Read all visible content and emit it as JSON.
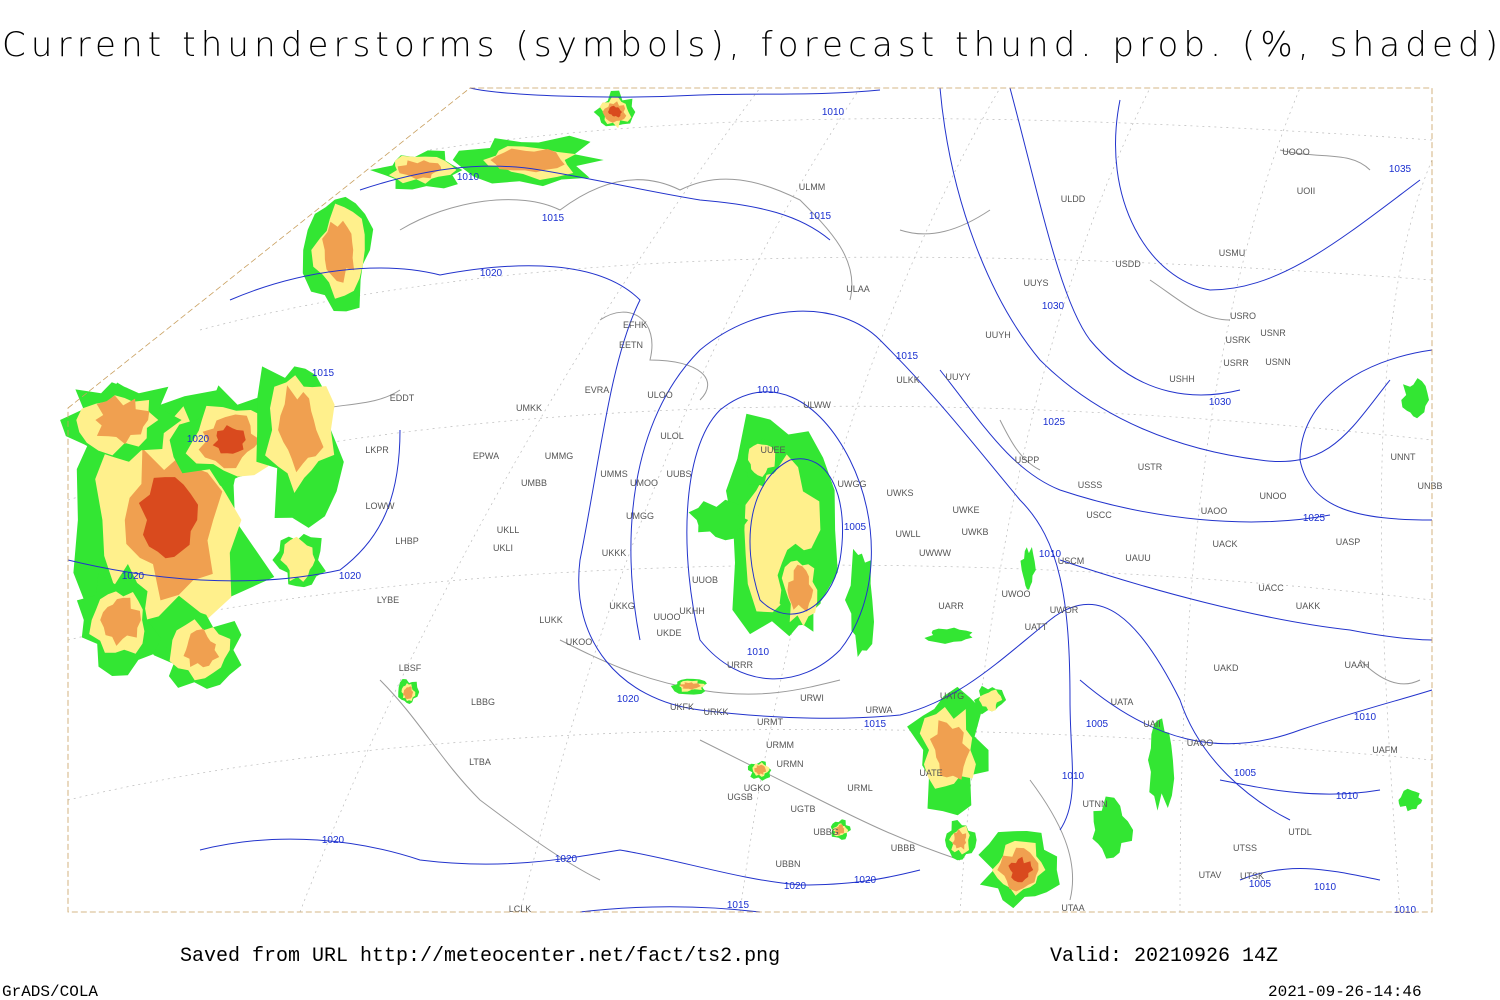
{
  "header": {
    "title": "Current thunderstorms (symbols), forecast thund. prob. (%, shaded)"
  },
  "footer": {
    "source": "Saved from URL http://meteocenter.net/fact/ts2.png",
    "valid": "Valid: 20210926 14Z",
    "software": "GrADS/COLA",
    "timestamp": "2021-09-26-14:46"
  },
  "map": {
    "isobar_labels": [
      1010,
      1010,
      1015,
      1015,
      1020,
      1015,
      1020,
      1020,
      1020,
      1015,
      1010,
      1005,
      1010,
      1010,
      1020,
      1015,
      1030,
      1030,
      1025,
      1025,
      1035,
      1005,
      1010,
      1005,
      1010,
      1010,
      1010,
      1005,
      1010,
      1020,
      1020,
      1020,
      1020,
      1015
    ],
    "stations": [
      "ULMM",
      "ULAA",
      "UUYS",
      "ULDD",
      "USDD",
      "USMU",
      "UOOO",
      "UOII",
      "UUYH",
      "USRO",
      "USRK",
      "USNR",
      "USRR",
      "USNN",
      "USHH",
      "ULKK",
      "UUYY",
      "EFHK",
      "EETN",
      "EVRA",
      "ULOO",
      "ULWW",
      "UMKK",
      "EDDT",
      "EPWA",
      "UMMG",
      "ULOL",
      "UUEE",
      "UMMS",
      "UMOO",
      "UUBS",
      "UWGG",
      "UWKS",
      "LKPR",
      "UMBB",
      "USPP",
      "USTR",
      "USSS",
      "UNOO",
      "LOWW",
      "UKLL",
      "UWKE",
      "UMGG",
      "UKLI",
      "LHBP",
      "UWKB",
      "USCC",
      "UNBB",
      "UNNT",
      "UAOO",
      "UACK",
      "UASP",
      "UWWW",
      "UWLL",
      "UKKK",
      "USCM",
      "UAUU",
      "UUOB",
      "UACC",
      "LYBE",
      "UKHH",
      "UKKG",
      "UUOO",
      "UWOO",
      "UWOR",
      "UKDE",
      "UARR",
      "UAKK",
      "LUKK",
      "UKOO",
      "UATT",
      "UAKD",
      "LBSF",
      "URRR",
      "UAAH",
      "LBBG",
      "URWI",
      "URWA",
      "UATG",
      "UKFK",
      "URKK",
      "UATA",
      "URMT",
      "UAII",
      "UAOO",
      "UAFM",
      "URMM",
      "LTBA",
      "URMN",
      "UATE",
      "UGKO",
      "URML",
      "UGSB",
      "UTNN",
      "UTDL",
      "UGTB",
      "UBBG",
      "UTSS",
      "UBBB",
      "UBBN",
      "UTAV",
      "UTSK",
      "UTAA",
      "LCLK"
    ]
  }
}
